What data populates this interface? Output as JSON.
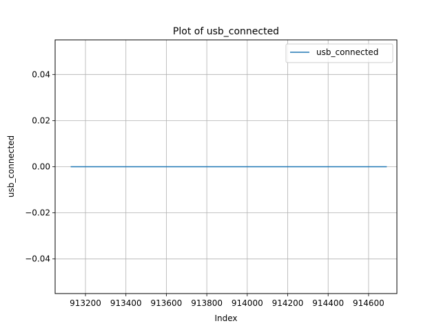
{
  "chart_data": {
    "type": "line",
    "title": "Plot of usb_connected",
    "xlabel": "Index",
    "ylabel": "usb_connected",
    "xlim": [
      913050,
      914740
    ],
    "ylim": [
      -0.055,
      0.055
    ],
    "x_ticks": [
      913200,
      913400,
      913600,
      913800,
      914000,
      914200,
      914400,
      914600
    ],
    "x_tick_labels": [
      "913200",
      "913400",
      "913600",
      "913800",
      "914000",
      "914200",
      "914400",
      "914600"
    ],
    "y_ticks": [
      -0.04,
      -0.02,
      0.0,
      0.02,
      0.04
    ],
    "y_tick_labels": [
      "−0.04",
      "−0.02",
      "0.00",
      "0.02",
      "0.04"
    ],
    "grid": true,
    "legend_position": "top-right",
    "series": [
      {
        "name": "usb_connected",
        "color": "#1f77b4",
        "x": [
          913127,
          914690
        ],
        "y": [
          0,
          0
        ]
      }
    ]
  }
}
